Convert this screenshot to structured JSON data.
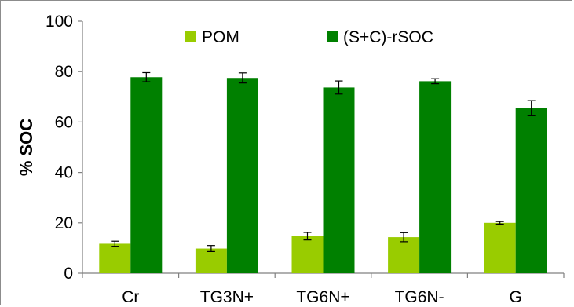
{
  "chart_data": {
    "type": "bar",
    "title": "",
    "xlabel": "",
    "ylabel": "% SOC",
    "ylim": [
      0,
      100
    ],
    "yticks": [
      0,
      20,
      40,
      60,
      80,
      100
    ],
    "grid": false,
    "legend_position": "top-center",
    "categories": [
      "Cr",
      "TG3N+",
      "TG6N+",
      "TG6N-",
      "G"
    ],
    "series": [
      {
        "name": "POM",
        "color": "#99cc00",
        "values": [
          11.7,
          9.8,
          14.7,
          14.3,
          20.0
        ],
        "errors": [
          1.0,
          1.2,
          1.5,
          1.8,
          0.5
        ]
      },
      {
        "name": "(S+C)-rSOC",
        "color": "#008000",
        "values": [
          77.8,
          77.5,
          73.7,
          76.2,
          65.5
        ],
        "errors": [
          1.8,
          2.0,
          2.6,
          1.0,
          3.0
        ]
      }
    ]
  }
}
